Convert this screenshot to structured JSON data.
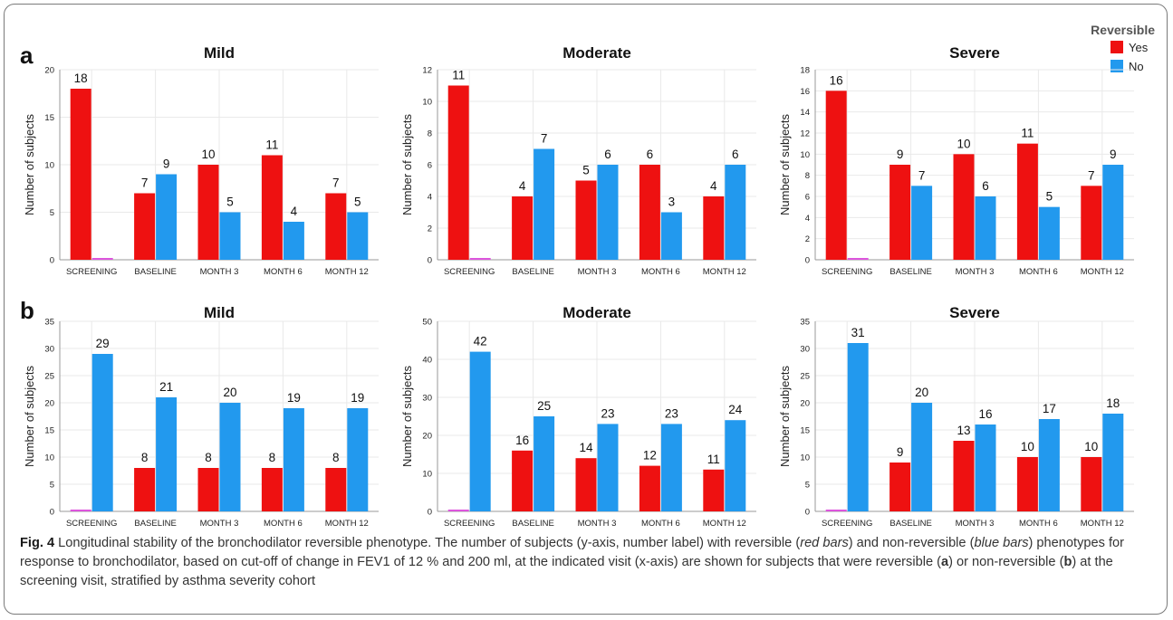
{
  "caption": {
    "label": "Fig. 4",
    "text_html": "Longitudinal stability of the bronchodilator reversible phenotype. The number of subjects (y-axis, number label) with reversible (<i>red bars</i>) and non-reversible (<i>blue bars</i>) phenotypes for response to bronchodilator, based on cut-off of change in FEV1 of 12 % and 200 ml, at the indicated visit (x-axis) are shown for subjects that were reversible (<b>a</b>) or non-reversible (<b>b</b>) at the screening visit, stratified by asthma severity cohort"
  },
  "legend": {
    "title": "Reversible",
    "items": [
      {
        "label": "Yes",
        "color": "#ee1111"
      },
      {
        "label": "No",
        "color": "#2299ee"
      }
    ]
  },
  "colors": {
    "yes": "#ee1111",
    "no": "#2299ee",
    "zero_marker": "#dd55dd"
  },
  "panels": [
    {
      "letter": "a"
    },
    {
      "letter": "b"
    }
  ],
  "chart_data": [
    {
      "type": "bar",
      "panel": "a",
      "title": "Mild",
      "ylabel": "Number of subjects",
      "xlabel": "",
      "categories": [
        "SCREENING",
        "BASELINE",
        "MONTH 3",
        "MONTH 6",
        "MONTH 12"
      ],
      "ylim": [
        0,
        20
      ],
      "yticks": [
        0,
        5,
        10,
        15,
        20
      ],
      "series": [
        {
          "name": "Yes",
          "values": [
            18,
            7,
            10,
            11,
            7
          ]
        },
        {
          "name": "No",
          "values": [
            0,
            9,
            5,
            4,
            5
          ]
        }
      ]
    },
    {
      "type": "bar",
      "panel": "a",
      "title": "Moderate",
      "ylabel": "Number of subjects",
      "xlabel": "",
      "categories": [
        "SCREENING",
        "BASELINE",
        "MONTH 3",
        "MONTH 6",
        "MONTH 12"
      ],
      "ylim": [
        0,
        12
      ],
      "yticks": [
        0,
        2,
        4,
        6,
        8,
        10,
        12
      ],
      "series": [
        {
          "name": "Yes",
          "values": [
            11,
            4,
            5,
            6,
            4
          ]
        },
        {
          "name": "No",
          "values": [
            0,
            7,
            6,
            3,
            6
          ]
        }
      ]
    },
    {
      "type": "bar",
      "panel": "a",
      "title": "Severe",
      "ylabel": "Number of subjects",
      "xlabel": "",
      "categories": [
        "SCREENING",
        "BASELINE",
        "MONTH 3",
        "MONTH 6",
        "MONTH 12"
      ],
      "ylim": [
        0,
        18
      ],
      "yticks": [
        0,
        2,
        4,
        6,
        8,
        10,
        12,
        14,
        16,
        18
      ],
      "series": [
        {
          "name": "Yes",
          "values": [
            16,
            9,
            10,
            11,
            7
          ]
        },
        {
          "name": "No",
          "values": [
            0,
            7,
            6,
            5,
            9
          ]
        }
      ]
    },
    {
      "type": "bar",
      "panel": "b",
      "title": "Mild",
      "ylabel": "Number of subjects",
      "xlabel": "",
      "categories": [
        "SCREENING",
        "BASELINE",
        "MONTH 3",
        "MONTH 6",
        "MONTH 12"
      ],
      "ylim": [
        0,
        35
      ],
      "yticks": [
        0,
        5,
        10,
        15,
        20,
        25,
        30,
        35
      ],
      "series": [
        {
          "name": "Yes",
          "values": [
            0,
            8,
            8,
            8,
            8
          ]
        },
        {
          "name": "No",
          "values": [
            29,
            21,
            20,
            19,
            19
          ]
        }
      ]
    },
    {
      "type": "bar",
      "panel": "b",
      "title": "Moderate",
      "ylabel": "Number of subjects",
      "xlabel": "",
      "categories": [
        "SCREENING",
        "BASELINE",
        "MONTH 3",
        "MONTH 6",
        "MONTH 12"
      ],
      "ylim": [
        0,
        50
      ],
      "yticks": [
        0,
        10,
        20,
        30,
        40,
        50
      ],
      "series": [
        {
          "name": "Yes",
          "values": [
            0,
            16,
            14,
            12,
            11
          ]
        },
        {
          "name": "No",
          "values": [
            42,
            25,
            23,
            23,
            24
          ]
        }
      ]
    },
    {
      "type": "bar",
      "panel": "b",
      "title": "Severe",
      "ylabel": "Number of subjects",
      "xlabel": "",
      "categories": [
        "SCREENING",
        "BASELINE",
        "MONTH 3",
        "MONTH 6",
        "MONTH 12"
      ],
      "ylim": [
        0,
        35
      ],
      "yticks": [
        0,
        5,
        10,
        15,
        20,
        25,
        30,
        35
      ],
      "series": [
        {
          "name": "Yes",
          "values": [
            0,
            9,
            13,
            10,
            10
          ]
        },
        {
          "name": "No",
          "values": [
            31,
            20,
            16,
            17,
            18
          ]
        }
      ]
    }
  ]
}
